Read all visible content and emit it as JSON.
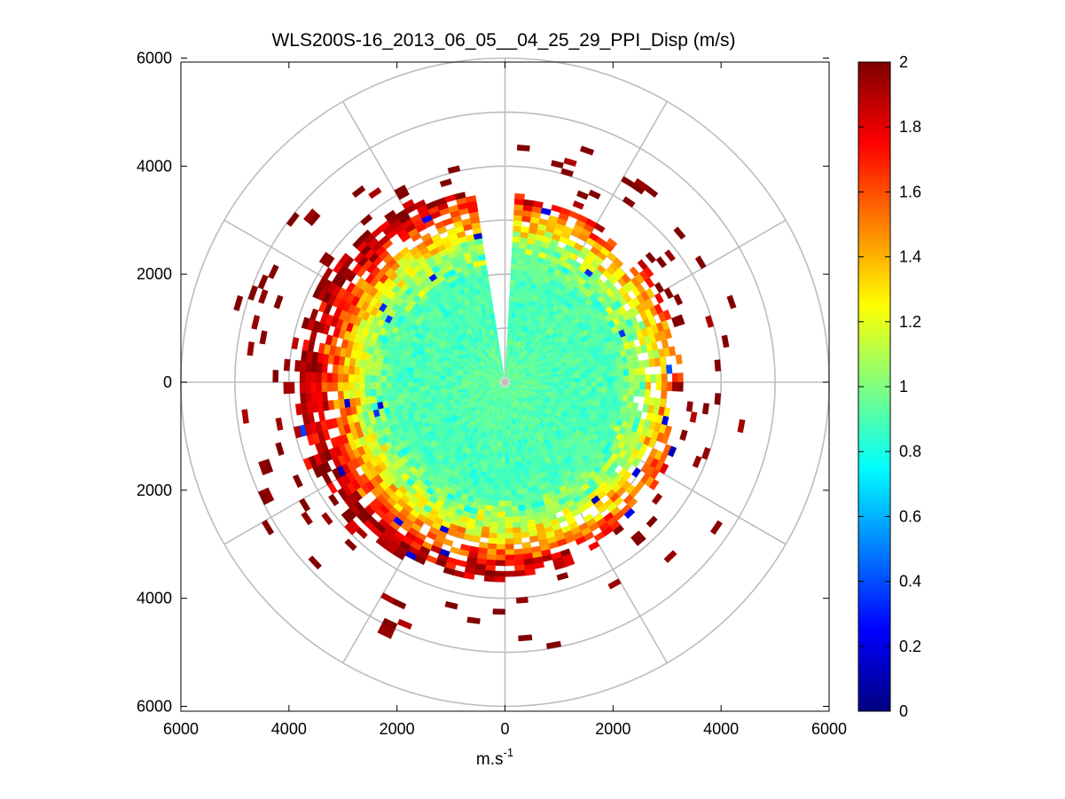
{
  "chart_data": {
    "type": "heatmap",
    "subtype": "polar-ppi-scan",
    "title": "WLS200S-16_2013_06_05__04_25_29_PPI_Disp (m/s)",
    "xlabel_base": "m.s",
    "xlabel_exp": "-1",
    "xlim": [
      -6000,
      6000
    ],
    "ylim": [
      -6000,
      6000
    ],
    "x_ticks": [
      -6000,
      -4000,
      -2000,
      0,
      2000,
      4000,
      6000
    ],
    "x_tick_labels": [
      "6000",
      "4000",
      "2000",
      "0",
      "2000",
      "4000",
      "6000"
    ],
    "y_ticks": [
      6000,
      4000,
      2000,
      0,
      -2000,
      -4000,
      -6000
    ],
    "y_tick_labels": [
      "6000",
      "4000",
      "2000",
      "0",
      "2000",
      "4000",
      "6000"
    ],
    "polar_grid_radii": [
      1000,
      2000,
      3000,
      4000,
      5000,
      6000
    ],
    "polar_grid_spoke_step_deg": 30,
    "colorbar": {
      "colormap": "jet",
      "clim": [
        0,
        2
      ],
      "ticks": [
        0,
        0.2,
        0.4,
        0.6,
        0.8,
        1,
        1.2,
        1.4,
        1.6,
        1.8,
        2
      ],
      "tick_labels": [
        "0",
        "0.2",
        "0.4",
        "0.6",
        "0.8",
        "1",
        "1.2",
        "1.4",
        "1.6",
        "1.8",
        "2"
      ]
    },
    "scan": {
      "range_max_data_m": 3500,
      "range_max_scattered_m": 5500,
      "gate_length_m": 100,
      "azimuth_step_deg": 3,
      "no_data_sector_deg": [
        -6,
        0
      ],
      "no_data_center_radius_m": 100,
      "value_by_range": [
        {
          "range_m": 0,
          "mean": 0.95
        },
        {
          "range_m": 1000,
          "mean": 0.9
        },
        {
          "range_m": 2000,
          "mean": 0.9
        },
        {
          "range_m": 2500,
          "mean": 1.05
        },
        {
          "range_m": 3000,
          "mean": 1.45
        },
        {
          "range_m": 3500,
          "mean": 1.9
        },
        {
          "range_m": 4500,
          "mean": 2.0
        }
      ]
    }
  }
}
